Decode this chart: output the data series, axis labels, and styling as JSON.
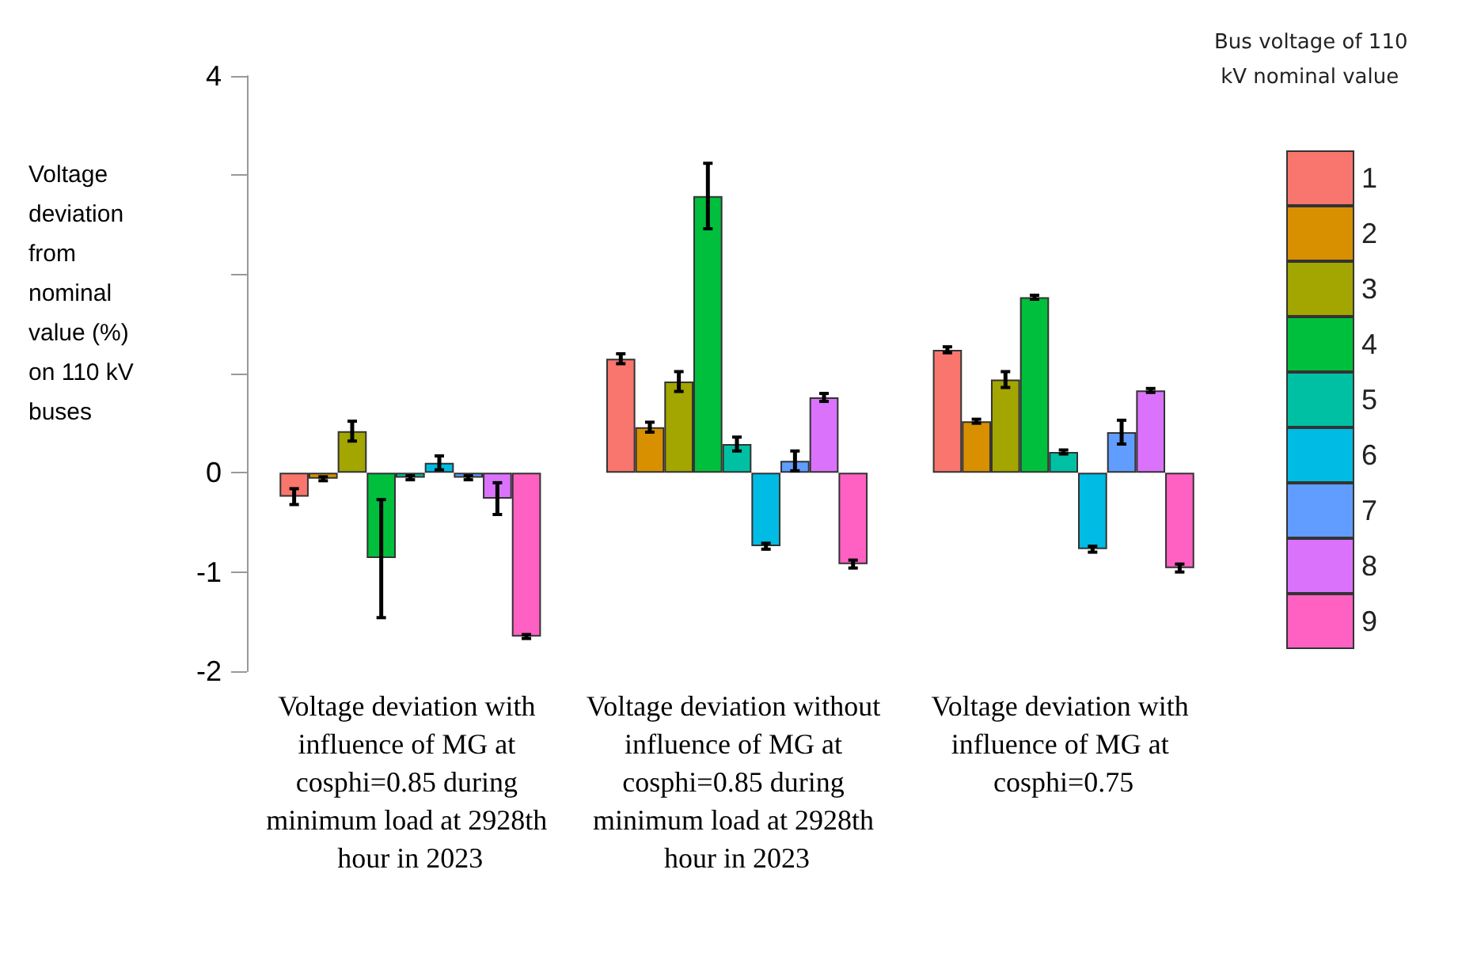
{
  "chart_data": {
    "type": "bar",
    "ylabel": "Voltage deviation from nominal value (%) on 110 kV buses",
    "legend_title": "Bus voltage of 110 kV nominal value",
    "legend": "right",
    "grid": false,
    "categories": [
      "Voltage deviation with influence of MG at cosphi=0.85 during minimum load at 2928th hour in 2023",
      "Voltage deviation without influence of MG at cosphi=0.85 during minimum load at 2928th hour in 2023",
      "Voltage deviation with influence of MG at cosphi=0.75"
    ],
    "ylim": [
      -2,
      4
    ],
    "yticks": [
      -2,
      -1,
      0,
      {
        "value": 1,
        "label": null
      },
      {
        "value": 2,
        "label": null
      },
      {
        "value": 3,
        "label": null
      },
      4
    ],
    "series": [
      {
        "name": "1",
        "color": "#f8766d",
        "values": [
          -0.24,
          1.15,
          1.24
        ],
        "errors": [
          0.08,
          0.05,
          0.03
        ]
      },
      {
        "name": "2",
        "color": "#d89000",
        "values": [
          -0.06,
          0.46,
          0.52
        ],
        "errors": [
          0.02,
          0.05,
          0.02
        ]
      },
      {
        "name": "3",
        "color": "#a3a500",
        "values": [
          0.42,
          0.92,
          0.94
        ],
        "errors": [
          0.1,
          0.1,
          0.08
        ]
      },
      {
        "name": "4",
        "color": "#00bf3c",
        "values": [
          -0.86,
          2.79,
          1.77
        ],
        "errors": [
          [
            -1.46,
            -0.27
          ],
          0.33,
          0.02
        ]
      },
      {
        "name": "5",
        "color": "#00c0a3",
        "values": [
          -0.05,
          0.29,
          0.21
        ],
        "errors": [
          0.02,
          0.07,
          0.02
        ]
      },
      {
        "name": "6",
        "color": "#00bbe3",
        "values": [
          0.1,
          -0.74,
          -0.77
        ],
        "errors": [
          0.07,
          0.03,
          0.03
        ]
      },
      {
        "name": "7",
        "color": "#619cff",
        "values": [
          -0.05,
          0.12,
          0.41
        ],
        "errors": [
          0.02,
          0.1,
          0.12
        ]
      },
      {
        "name": "8",
        "color": "#db72fb",
        "values": [
          -0.26,
          0.76,
          0.83
        ],
        "errors": [
          0.16,
          0.04,
          0.02
        ]
      },
      {
        "name": "9",
        "color": "#ff61c3",
        "values": [
          -1.65,
          -0.92,
          -0.96
        ],
        "errors": [
          0.02,
          0.04,
          0.04
        ]
      }
    ]
  }
}
